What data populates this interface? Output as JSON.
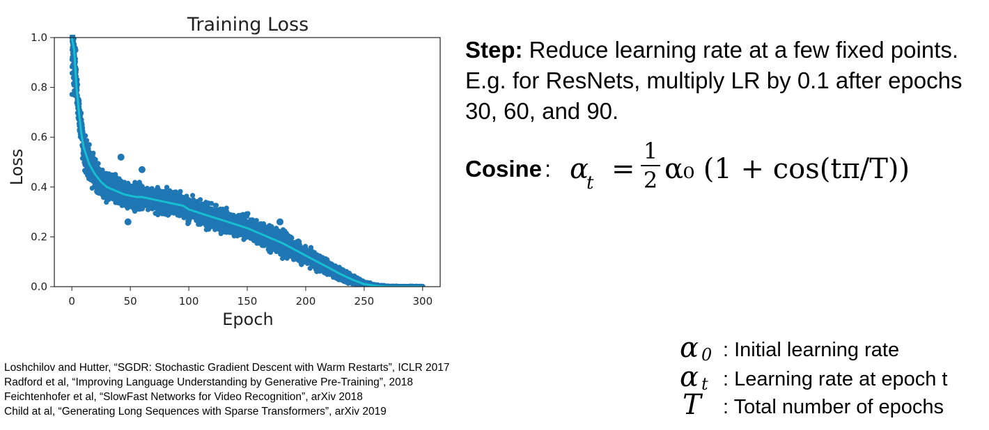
{
  "chart_data": {
    "type": "scatter",
    "title": "Training Loss",
    "xlabel": "Epoch",
    "ylabel": "Loss",
    "xlim": [
      -15,
      315
    ],
    "ylim": [
      0.0,
      1.0
    ],
    "xticks": [
      "0",
      "50",
      "100",
      "150",
      "200",
      "250",
      "300"
    ],
    "xtick_values": [
      0,
      50,
      100,
      150,
      200,
      250,
      300
    ],
    "yticks": [
      "0.0",
      "0.2",
      "0.4",
      "0.6",
      "0.8",
      "1.0"
    ],
    "ytick_values": [
      0.0,
      0.2,
      0.4,
      0.6,
      0.8,
      1.0
    ],
    "grid": false,
    "series": [
      {
        "kind": "scatter",
        "color": "#1f77b4",
        "x": [
          0,
          2,
          4,
          6,
          8,
          10,
          15,
          20,
          25,
          30,
          35,
          40,
          45,
          50,
          55,
          60,
          65,
          70,
          75,
          80,
          85,
          90,
          95,
          100,
          110,
          120,
          130,
          140,
          150,
          160,
          170,
          180,
          190,
          200,
          210,
          220,
          230,
          240,
          250,
          260,
          270,
          280,
          290,
          300
        ],
        "y": [
          1.0,
          0.95,
          0.8,
          0.7,
          0.62,
          0.56,
          0.49,
          0.45,
          0.42,
          0.4,
          0.39,
          0.38,
          0.37,
          0.365,
          0.36,
          0.36,
          0.355,
          0.35,
          0.345,
          0.34,
          0.335,
          0.33,
          0.325,
          0.31,
          0.295,
          0.28,
          0.265,
          0.25,
          0.235,
          0.215,
          0.195,
          0.175,
          0.15,
          0.125,
          0.1,
          0.075,
          0.05,
          0.028,
          0.01,
          0.003,
          0.0,
          0.0,
          0.0,
          0.0
        ],
        "spread": [
          0.05,
          0.05,
          0.06,
          0.07,
          0.07,
          0.07,
          0.07,
          0.07,
          0.06,
          0.06,
          0.06,
          0.06,
          0.055,
          0.055,
          0.055,
          0.055,
          0.05,
          0.05,
          0.05,
          0.05,
          0.05,
          0.05,
          0.05,
          0.05,
          0.05,
          0.05,
          0.05,
          0.05,
          0.05,
          0.05,
          0.05,
          0.05,
          0.045,
          0.04,
          0.035,
          0.03,
          0.025,
          0.018,
          0.01,
          0.005,
          0.003,
          0.002,
          0.002,
          0.002
        ],
        "outliers": [
          [
            42,
            0.52
          ],
          [
            60,
            0.47
          ],
          [
            48,
            0.26
          ],
          [
            178,
            0.26
          ],
          [
            222,
            0.08
          ]
        ]
      },
      {
        "kind": "line",
        "color": "#17becf",
        "x": [
          0,
          2,
          4,
          6,
          8,
          10,
          15,
          20,
          25,
          30,
          35,
          40,
          45,
          50,
          55,
          60,
          65,
          70,
          75,
          80,
          85,
          90,
          95,
          100,
          110,
          120,
          130,
          140,
          150,
          160,
          170,
          180,
          190,
          200,
          210,
          220,
          230,
          240,
          250,
          260,
          270,
          280,
          290,
          300
        ],
        "y": [
          1.0,
          0.95,
          0.8,
          0.7,
          0.62,
          0.56,
          0.49,
          0.45,
          0.42,
          0.4,
          0.39,
          0.38,
          0.37,
          0.365,
          0.36,
          0.36,
          0.355,
          0.35,
          0.345,
          0.34,
          0.335,
          0.33,
          0.325,
          0.31,
          0.295,
          0.28,
          0.265,
          0.25,
          0.235,
          0.215,
          0.195,
          0.175,
          0.15,
          0.125,
          0.1,
          0.075,
          0.05,
          0.028,
          0.01,
          0.003,
          0.0,
          0.0,
          0.0,
          0.0
        ]
      }
    ]
  },
  "step": {
    "label": "Step:",
    "text": " Reduce learning rate at a few fixed points. E.g. for ResNets, multiply LR by 0.1 after epochs 30, 60, and 90."
  },
  "cosine": {
    "label": "Cosine",
    "colon": ":",
    "symbol": "α",
    "subscript": "t",
    "equals": "=",
    "frac_num": "1",
    "frac_den": "2",
    "rest": "α₀ (1 + cos(tπ/T))"
  },
  "legend": [
    {
      "symbol": "α",
      "subscript": "0",
      "desc": ": Initial learning rate"
    },
    {
      "symbol": "α",
      "subscript": "t",
      "desc": ": Learning rate at epoch t"
    },
    {
      "symbol": "T",
      "subscript": "",
      "desc": ": Total number of epochs"
    }
  ],
  "references": [
    "Loshchilov and Hutter, “SGDR: Stochastic Gradient Descent with Warm Restarts”, ICLR 2017",
    "Radford et al, “Improving Language Understanding by Generative Pre-Training”, 2018",
    "Feichtenhofer et al, “SlowFast Networks for Video Recognition”, arXiv 2018",
    "Child at al, “Generating Long Sequences with Sparse Transformers”, arXiv 2019"
  ]
}
